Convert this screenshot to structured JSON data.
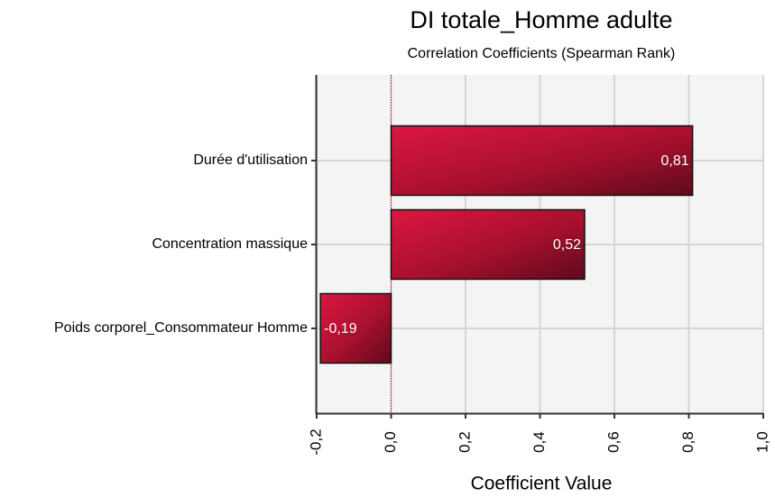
{
  "chart_data": {
    "type": "barh",
    "title": "DI totale_Homme adulte",
    "subtitle": "Correlation Coefficients (Spearman Rank)",
    "xlabel": "Coefficient Value",
    "categories": [
      "Durée d'utilisation",
      "Concentration massique",
      "Poids corporel_Consommateur Homme"
    ],
    "values": [
      0.81,
      0.52,
      -0.19
    ],
    "value_labels": [
      "0,81",
      "0,52",
      "-0,19"
    ],
    "color": "#c8102e",
    "xlim": [
      -0.2,
      1.0
    ],
    "xticks": [
      {
        "value": -0.2,
        "label": "-0,2"
      },
      {
        "value": 0.0,
        "label": "0,0"
      },
      {
        "value": 0.2,
        "label": "0,2"
      },
      {
        "value": 0.4,
        "label": "0,4"
      },
      {
        "value": 0.6,
        "label": "0,6"
      },
      {
        "value": 0.8,
        "label": "0,8"
      },
      {
        "value": 1.0,
        "label": "1,0"
      }
    ],
    "grid": true
  }
}
